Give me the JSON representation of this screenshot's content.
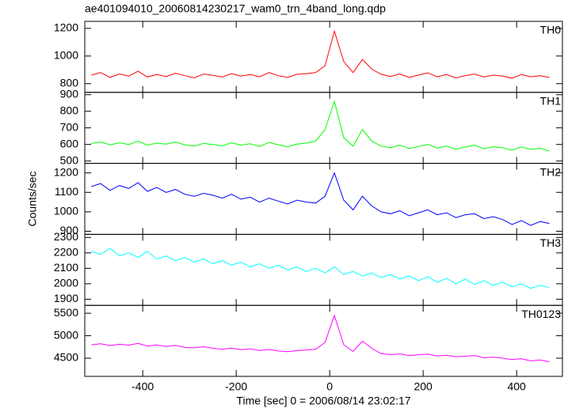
{
  "chart_data": [
    {
      "type": "line",
      "title": "ae401094010_20060814230217_wam0_trn_4band_long.qdp",
      "label": "TH0",
      "color": "#ff0000",
      "x": [
        -510,
        -490,
        -470,
        -450,
        -430,
        -410,
        -390,
        -370,
        -350,
        -330,
        -310,
        -290,
        -270,
        -250,
        -230,
        -210,
        -190,
        -170,
        -150,
        -130,
        -110,
        -90,
        -70,
        -50,
        -30,
        -10,
        10,
        30,
        50,
        70,
        90,
        110,
        130,
        150,
        170,
        190,
        210,
        230,
        250,
        270,
        290,
        310,
        330,
        350,
        370,
        390,
        410,
        430,
        450,
        470
      ],
      "values": [
        862,
        880,
        845,
        870,
        855,
        890,
        848,
        866,
        852,
        875,
        858,
        842,
        870,
        860,
        848,
        872,
        855,
        866,
        850,
        880,
        858,
        845,
        868,
        872,
        880,
        930,
        1180,
        960,
        880,
        975,
        905,
        868,
        852,
        870,
        845,
        862,
        878,
        850,
        866,
        842,
        858,
        870,
        848,
        862,
        855,
        840,
        866,
        850,
        858,
        845
      ],
      "xlim": [
        -524,
        498
      ],
      "ylim": [
        737,
        1251
      ],
      "yticks": [
        800,
        1000,
        1200
      ]
    },
    {
      "type": "line",
      "label": "TH1",
      "color": "#00ff00",
      "x": [
        -510,
        -490,
        -470,
        -450,
        -430,
        -410,
        -390,
        -370,
        -350,
        -330,
        -310,
        -290,
        -270,
        -250,
        -230,
        -210,
        -190,
        -170,
        -150,
        -130,
        -110,
        -90,
        -70,
        -50,
        -30,
        -10,
        10,
        30,
        50,
        70,
        90,
        110,
        130,
        150,
        170,
        190,
        210,
        230,
        250,
        270,
        290,
        310,
        330,
        350,
        370,
        390,
        410,
        430,
        450,
        470
      ],
      "values": [
        605,
        615,
        598,
        610,
        600,
        620,
        596,
        608,
        602,
        614,
        598,
        590,
        606,
        600,
        592,
        610,
        596,
        604,
        588,
        612,
        598,
        586,
        602,
        608,
        620,
        690,
        860,
        640,
        590,
        690,
        620,
        590,
        580,
        596,
        575,
        588,
        600,
        578,
        590,
        572,
        584,
        596,
        574,
        586,
        580,
        565,
        585,
        570,
        578,
        560
      ],
      "xlim": [
        -524,
        498
      ],
      "ylim": [
        486,
        914
      ],
      "yticks": [
        500,
        600,
        700,
        800,
        900
      ]
    },
    {
      "type": "line",
      "label": "TH2",
      "color": "#0000ff",
      "ylabel": "Counts/sec",
      "x": [
        -510,
        -490,
        -470,
        -450,
        -430,
        -410,
        -390,
        -370,
        -350,
        -330,
        -310,
        -290,
        -270,
        -250,
        -230,
        -210,
        -190,
        -170,
        -150,
        -130,
        -110,
        -90,
        -70,
        -50,
        -30,
        -10,
        10,
        30,
        50,
        70,
        90,
        110,
        130,
        150,
        170,
        190,
        210,
        230,
        250,
        270,
        290,
        310,
        330,
        350,
        370,
        390,
        410,
        430,
        450,
        470
      ],
      "values": [
        1130,
        1145,
        1110,
        1135,
        1120,
        1150,
        1105,
        1125,
        1100,
        1115,
        1090,
        1080,
        1095,
        1085,
        1070,
        1090,
        1065,
        1075,
        1050,
        1070,
        1055,
        1040,
        1060,
        1050,
        1045,
        1080,
        1200,
        1060,
        1010,
        1080,
        1030,
        1000,
        990,
        1005,
        980,
        995,
        1010,
        985,
        995,
        970,
        985,
        990,
        965,
        975,
        960,
        935,
        955,
        930,
        950,
        940
      ],
      "xlim": [
        -524,
        498
      ],
      "ylim": [
        884,
        1249
      ],
      "yticks": [
        900,
        1000,
        1100,
        1200
      ]
    },
    {
      "type": "line",
      "label": "TH3",
      "color": "#00ffff",
      "x": [
        -510,
        -490,
        -470,
        -450,
        -430,
        -410,
        -390,
        -370,
        -350,
        -330,
        -310,
        -290,
        -270,
        -250,
        -230,
        -210,
        -190,
        -170,
        -150,
        -130,
        -110,
        -90,
        -70,
        -50,
        -30,
        -10,
        10,
        30,
        50,
        70,
        90,
        110,
        130,
        150,
        170,
        190,
        210,
        230,
        250,
        270,
        290,
        310,
        330,
        350,
        370,
        390,
        410,
        430,
        450,
        470
      ],
      "values": [
        2210,
        2190,
        2230,
        2180,
        2200,
        2170,
        2210,
        2160,
        2180,
        2150,
        2170,
        2140,
        2160,
        2130,
        2150,
        2120,
        2140,
        2110,
        2130,
        2100,
        2120,
        2090,
        2110,
        2080,
        2100,
        2070,
        2110,
        2060,
        2080,
        2050,
        2070,
        2040,
        2060,
        2030,
        2050,
        2020,
        2045,
        2010,
        2035,
        2000,
        2030,
        1995,
        2020,
        1990,
        2010,
        1980,
        2000,
        1970,
        1990,
        1975
      ],
      "xlim": [
        -524,
        498
      ],
      "ylim": [
        1860,
        2320
      ],
      "yticks": [
        1900,
        2000,
        2100,
        2200,
        2300
      ]
    },
    {
      "type": "line",
      "label": "TH0123",
      "color": "#ff00ff",
      "xlabel": "Time [sec] 0 = 2006/08/14 23:02:17",
      "x": [
        -510,
        -490,
        -470,
        -450,
        -430,
        -410,
        -390,
        -370,
        -350,
        -330,
        -310,
        -290,
        -270,
        -250,
        -230,
        -210,
        -190,
        -170,
        -150,
        -130,
        -110,
        -90,
        -70,
        -50,
        -30,
        -10,
        10,
        30,
        50,
        70,
        90,
        110,
        130,
        150,
        170,
        190,
        210,
        230,
        250,
        270,
        290,
        310,
        330,
        350,
        370,
        390,
        410,
        430,
        450,
        470
      ],
      "values": [
        4800,
        4820,
        4780,
        4810,
        4790,
        4830,
        4770,
        4795,
        4760,
        4785,
        4740,
        4730,
        4755,
        4720,
        4700,
        4725,
        4690,
        4710,
        4670,
        4695,
        4660,
        4645,
        4670,
        4680,
        4700,
        4850,
        5450,
        4800,
        4650,
        4880,
        4720,
        4600,
        4580,
        4595,
        4560,
        4575,
        4590,
        4550,
        4565,
        4530,
        4545,
        4560,
        4510,
        4525,
        4500,
        4470,
        4490,
        4440,
        4460,
        4420
      ],
      "xlim": [
        -524,
        498
      ],
      "ylim": [
        4096,
        5675
      ],
      "yticks": [
        4500,
        5000,
        5500
      ],
      "xticks": [
        -400,
        -200,
        0,
        200,
        400
      ]
    }
  ]
}
